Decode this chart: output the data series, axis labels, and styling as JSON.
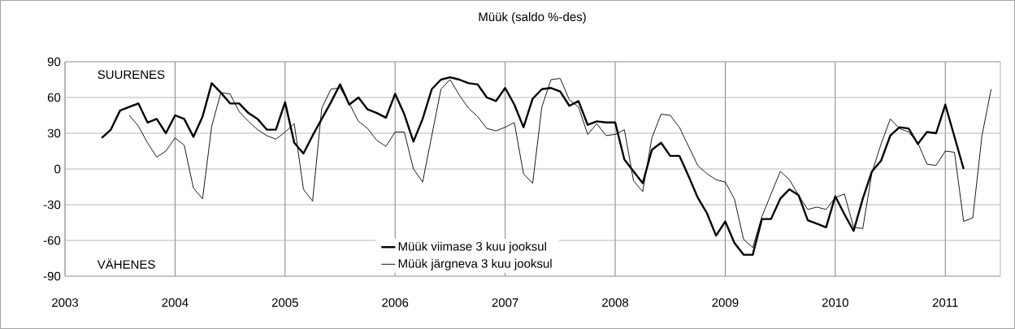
{
  "chart_data": {
    "type": "line",
    "title": "Müük (saldo %-des)",
    "annotations": [
      "SUURENES",
      "VÄHENES"
    ],
    "xlim": [
      "2003-01",
      "2011-07"
    ],
    "xticks": [
      "2003",
      "2004",
      "2005",
      "2006",
      "2007",
      "2008",
      "2009",
      "2010",
      "2011"
    ],
    "ylim": [
      -90,
      90
    ],
    "yticks": [
      -90,
      -60,
      -30,
      0,
      30,
      60,
      90
    ],
    "grid": true,
    "legend": "bottom",
    "marker": "none",
    "line_style": "solid",
    "series": [
      {
        "name": "Müük viimase 3 kuu jooksul",
        "color": "#000000",
        "x": [
          "2003-05",
          "2003-06",
          "2003-07",
          "2003-08",
          "2003-09",
          "2003-10",
          "2003-11",
          "2003-12",
          "2004-01",
          "2004-02",
          "2004-03",
          "2004-04",
          "2004-05",
          "2004-06",
          "2004-07",
          "2004-08",
          "2004-09",
          "2004-10",
          "2004-11",
          "2004-12",
          "2005-01",
          "2005-02",
          "2005-03",
          "2005-04",
          "2005-05",
          "2005-06",
          "2005-07",
          "2005-08",
          "2005-09",
          "2005-10",
          "2005-11",
          "2005-12",
          "2006-01",
          "2006-02",
          "2006-03",
          "2006-04",
          "2006-05",
          "2006-06",
          "2006-07",
          "2006-08",
          "2006-09",
          "2006-10",
          "2006-11",
          "2006-12",
          "2007-01",
          "2007-02",
          "2007-03",
          "2007-04",
          "2007-05",
          "2007-06",
          "2007-07",
          "2007-08",
          "2007-09",
          "2007-10",
          "2007-11",
          "2007-12",
          "2008-01",
          "2008-02",
          "2008-03",
          "2008-04",
          "2008-05",
          "2008-06",
          "2008-07",
          "2008-08",
          "2008-09",
          "2008-10",
          "2008-11",
          "2008-12",
          "2009-01",
          "2009-02",
          "2009-03",
          "2009-04",
          "2009-05",
          "2009-06",
          "2009-07",
          "2009-08",
          "2009-09",
          "2009-10",
          "2009-11",
          "2009-12",
          "2010-01",
          "2010-02",
          "2010-03",
          "2010-04",
          "2010-05",
          "2010-06",
          "2010-07",
          "2010-08",
          "2010-09",
          "2010-10",
          "2010-11",
          "2010-12",
          "2011-01",
          "2011-02",
          "2011-03"
        ],
        "values": [
          26,
          33,
          49,
          52,
          55,
          39,
          42,
          30,
          45,
          42,
          27,
          44,
          72,
          64,
          55,
          55,
          47,
          42,
          33,
          33,
          56,
          22,
          13,
          28,
          42,
          56,
          71,
          54,
          60,
          50,
          47,
          43,
          63,
          46,
          23,
          42,
          67,
          75,
          77,
          75,
          72,
          71,
          60,
          57,
          68,
          54,
          35,
          59,
          67,
          68,
          65,
          53,
          57,
          37,
          40,
          39,
          39,
          8,
          -2,
          -12,
          16,
          22,
          11,
          11,
          -6,
          -24,
          -37,
          -56,
          -44,
          -62,
          -72,
          -72,
          -42,
          -42,
          -25,
          -17,
          -22,
          -43,
          -46,
          -49,
          -23,
          -38,
          -52,
          -25,
          -2,
          7,
          28,
          35,
          34,
          21,
          31,
          30,
          54,
          27,
          0
        ]
      },
      {
        "name": "Müük järgneva 3 kuu jooksul",
        "color": "#000000",
        "x": [
          "2003-08",
          "2003-09",
          "2003-10",
          "2003-11",
          "2003-12",
          "2004-01",
          "2004-02",
          "2004-03",
          "2004-04",
          "2004-05",
          "2004-06",
          "2004-07",
          "2004-08",
          "2004-09",
          "2004-10",
          "2004-11",
          "2004-12",
          "2005-01",
          "2005-02",
          "2005-03",
          "2005-04",
          "2005-05",
          "2005-06",
          "2005-07",
          "2005-08",
          "2005-09",
          "2005-10",
          "2005-11",
          "2005-12",
          "2006-01",
          "2006-02",
          "2006-03",
          "2006-04",
          "2006-05",
          "2006-06",
          "2006-07",
          "2006-08",
          "2006-09",
          "2006-10",
          "2006-11",
          "2006-12",
          "2007-01",
          "2007-02",
          "2007-03",
          "2007-04",
          "2007-05",
          "2007-06",
          "2007-07",
          "2007-08",
          "2007-09",
          "2007-10",
          "2007-11",
          "2007-12",
          "2008-01",
          "2008-02",
          "2008-03",
          "2008-04",
          "2008-05",
          "2008-06",
          "2008-07",
          "2008-08",
          "2008-09",
          "2008-10",
          "2008-11",
          "2008-12",
          "2009-01",
          "2009-02",
          "2009-03",
          "2009-04",
          "2009-05",
          "2009-06",
          "2009-07",
          "2009-08",
          "2009-09",
          "2009-10",
          "2009-11",
          "2009-12",
          "2010-01",
          "2010-02",
          "2010-03",
          "2010-04",
          "2010-05",
          "2010-06",
          "2010-07",
          "2010-08",
          "2010-09",
          "2010-10",
          "2010-11",
          "2010-12",
          "2011-01",
          "2011-02",
          "2011-03",
          "2011-04",
          "2011-05",
          "2011-06"
        ],
        "values": [
          45,
          36,
          22,
          10,
          15,
          26,
          20,
          -16,
          -25,
          36,
          64,
          63,
          48,
          40,
          33,
          28,
          25,
          31,
          38,
          -17,
          -27,
          51,
          67,
          68,
          55,
          40,
          34,
          24,
          19,
          31,
          31,
          0,
          -11,
          28,
          67,
          75,
          62,
          51,
          44,
          34,
          32,
          35,
          39,
          -4,
          -12,
          52,
          75,
          76,
          58,
          52,
          29,
          38,
          28,
          29,
          33,
          -10,
          -19,
          26,
          46,
          45,
          35,
          19,
          3,
          -4,
          -9,
          -11,
          -25,
          -59,
          -66,
          -40,
          -21,
          -2,
          -9,
          -22,
          -34,
          -32,
          -34,
          -24,
          -21,
          -49,
          -50,
          -3,
          21,
          42,
          34,
          31,
          22,
          4,
          3,
          15,
          14,
          -44,
          -41,
          28,
          67
        ]
      }
    ]
  }
}
